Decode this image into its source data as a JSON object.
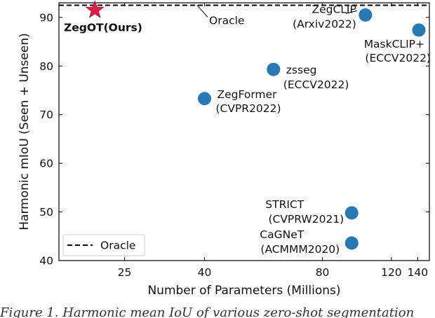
{
  "chart_data": {
    "type": "scatter",
    "xlabel": "Number of Parameters (Millions)",
    "ylabel": "Harmonic mIoU (Seen + Unseen)",
    "x_scale": "log",
    "xlim": [
      17,
      150
    ],
    "ylim": [
      40,
      93
    ],
    "x_ticks": [
      {
        "value": 25,
        "label": "25"
      },
      {
        "value": 40,
        "label": "40"
      },
      {
        "value": 80,
        "label": "80"
      },
      {
        "value": 120,
        "label": "120"
      },
      {
        "value": 140,
        "label": "140"
      }
    ],
    "y_ticks": [
      {
        "value": 40,
        "label": "40"
      },
      {
        "value": 50,
        "label": "50"
      },
      {
        "value": 60,
        "label": "60"
      },
      {
        "value": 70,
        "label": "70"
      },
      {
        "value": 80,
        "label": "80"
      },
      {
        "value": 90,
        "label": "90"
      }
    ],
    "oracle": {
      "value": 92.5,
      "label": "Oracle"
    },
    "legend": {
      "position": "lower-left",
      "entries": [
        "Oracle"
      ]
    },
    "ours": {
      "name": "ZegOT(Ours)",
      "x": 21,
      "y": 91.5,
      "color": "#e31a4c",
      "marker": "star"
    },
    "points": [
      {
        "id": "zegclip",
        "name": "ZegCLIP",
        "venue": "(Arxiv2022)",
        "x": 103,
        "y": 90.5
      },
      {
        "id": "maskclip",
        "name": "MaskCLIP+",
        "venue": "(ECCV2022)",
        "x": 141,
        "y": 87.4
      },
      {
        "id": "zsseg",
        "name": "zsseg",
        "venue": "(ECCV2022)",
        "x": 60,
        "y": 79.3
      },
      {
        "id": "zegformer",
        "name": "ZegFormer",
        "venue": "(CVPR2022)",
        "x": 40,
        "y": 73.3
      },
      {
        "id": "strict",
        "name": "STRICT",
        "venue": "(CVPRW2021)",
        "x": 95,
        "y": 49.8
      },
      {
        "id": "cagnet",
        "name": "CaGNeT",
        "venue": "(ACMMM2020)",
        "x": 95,
        "y": 43.6
      }
    ],
    "point_color": "#2878b5"
  },
  "caption": "Figure 1. Harmonic mean IoU of various zero-shot segmentation"
}
